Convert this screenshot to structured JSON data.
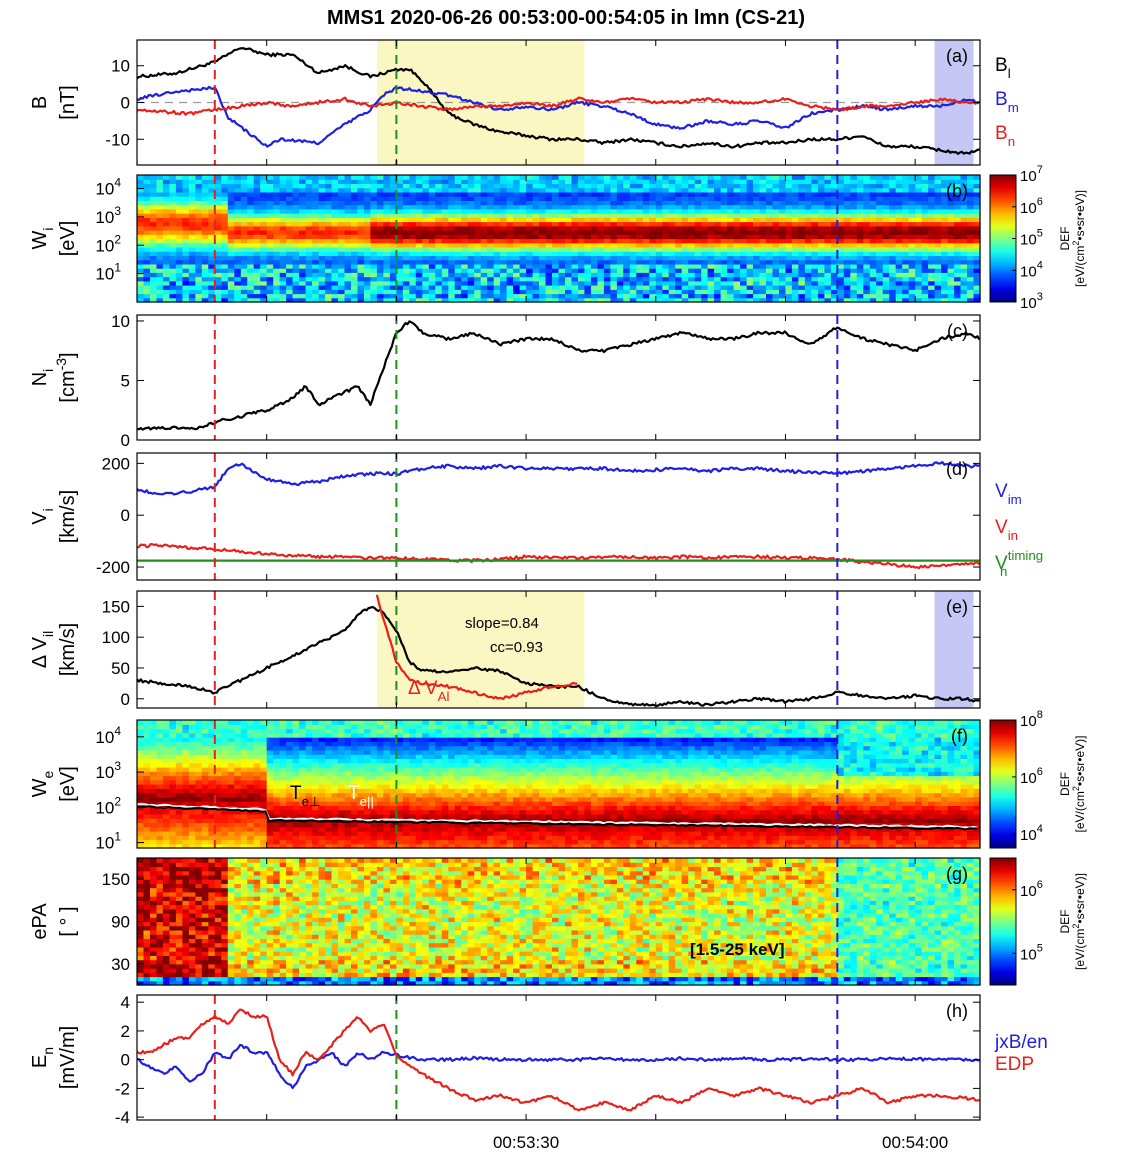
{
  "figure": {
    "title": "MMS1 2020-06-26 00:53:00-00:54:05 in lmn (CS-21)",
    "x_tick_labels": [
      "00:53:30",
      "00:54:00"
    ],
    "colors": {
      "black": "#000000",
      "blue": "#1f1fe0",
      "red": "#e8201c",
      "green": "#1f8f1f",
      "yellow_band": "#fbf7c2",
      "purple_band": "#c6c7f4"
    }
  },
  "chart_data": [
    {
      "panel": "a",
      "type": "line",
      "label": "(a)",
      "ylabel": "B",
      "yunit": "[nT]",
      "ylim": [
        -17,
        17
      ],
      "yticks": [
        -10,
        0,
        10
      ],
      "ytick_labels": [
        "-10",
        "0",
        "10"
      ],
      "series": [
        {
          "name": "B",
          "sub": "l",
          "color": "#000000",
          "t": [
            0,
            3,
            6,
            8,
            10,
            12,
            14,
            16,
            18,
            20,
            21,
            22,
            24,
            26,
            28,
            30,
            32,
            34,
            36,
            38,
            40,
            42,
            44,
            46,
            48,
            50,
            52,
            54,
            56,
            57,
            58,
            60,
            62,
            64,
            65
          ],
          "y": [
            7,
            8,
            11,
            15,
            13,
            13,
            8,
            10,
            7,
            9,
            9,
            6,
            -3,
            -6,
            -8,
            -9,
            -10,
            -10,
            -11,
            -10,
            -11,
            -12,
            -11,
            -12,
            -11,
            -11,
            -10,
            -10,
            -9,
            -11,
            -12,
            -12,
            -13,
            -14,
            -13
          ]
        },
        {
          "name": "B",
          "sub": "m",
          "color": "#1f1fe0",
          "t": [
            0,
            3,
            6,
            7,
            10,
            11,
            14,
            16,
            18,
            19,
            20,
            22,
            24,
            26,
            28,
            30,
            32,
            34,
            36,
            38,
            40,
            42,
            44,
            46,
            48,
            50,
            52,
            54,
            56,
            58,
            60,
            62,
            64,
            65
          ],
          "y": [
            1,
            3,
            4,
            -4,
            -12,
            -10,
            -11,
            -6,
            -2,
            2,
            4,
            3,
            2,
            0,
            -2,
            -1,
            -2,
            0,
            -1,
            -3,
            -6,
            -7,
            -5,
            -6,
            -5,
            -7,
            -3,
            -2,
            -1,
            -2,
            -1,
            -1,
            1,
            0
          ]
        },
        {
          "name": "B",
          "sub": "n",
          "color": "#e8201c",
          "t": [
            0,
            4,
            6,
            8,
            10,
            12,
            14,
            16,
            18,
            20,
            22,
            24,
            26,
            28,
            30,
            32,
            34,
            36,
            38,
            40,
            42,
            44,
            46,
            48,
            50,
            52,
            54,
            56,
            58,
            60,
            62,
            64,
            65
          ],
          "y": [
            -2,
            -3,
            -2,
            -1,
            0,
            -1,
            0,
            1,
            -1,
            0,
            -1,
            -2,
            -1,
            -1,
            0,
            -1,
            1,
            0,
            1,
            0,
            0,
            1,
            0,
            0,
            1,
            -1,
            -2,
            -1,
            -1,
            0,
            1,
            0,
            0
          ]
        }
      ],
      "vlines_t": [
        6,
        20,
        54
      ],
      "hline_y": 0,
      "shaded_t": [
        [
          18.5,
          34.5
        ],
        [
          61.5,
          64.5
        ]
      ],
      "legend": [
        {
          "name": "B",
          "sub": "l",
          "color": "#000000"
        },
        {
          "name": "B",
          "sub": "m",
          "color": "#1f1fe0"
        },
        {
          "name": "B",
          "sub": "n",
          "color": "#e8201c"
        }
      ]
    },
    {
      "panel": "b",
      "type": "heatmap",
      "label": "(b)",
      "ylabel": "W",
      "ysub": "i",
      "yunit": "[eV]",
      "yscale": "log",
      "ylim": [
        1,
        30000
      ],
      "ytick_labels": [
        [
          "10",
          "1"
        ],
        [
          "10",
          "2"
        ],
        [
          "10",
          "3"
        ],
        [
          "10",
          "4"
        ]
      ],
      "colorbar": {
        "min_exp": 3,
        "max_exp": 7,
        "tick_labels": [
          [
            "10",
            "3"
          ],
          [
            "10",
            "4"
          ],
          [
            "10",
            "5"
          ],
          [
            "10",
            "6"
          ],
          [
            "10",
            "7"
          ]
        ],
        "label": "DEF",
        "unit_prefix": "[eV/(cm",
        "unit_sup": "2",
        "unit_suffix": "•s•sr•eV)]"
      },
      "vlines_t": [
        6,
        20,
        54
      ]
    },
    {
      "panel": "c",
      "type": "line",
      "label": "(c)",
      "ylabel": "N",
      "ysub": "i",
      "yunit_prefix": "[cm",
      "yunit_sup": "-3",
      "yunit_suffix": "]",
      "ylim": [
        0,
        10.5
      ],
      "yticks": [
        0,
        5,
        10
      ],
      "ytick_labels": [
        "0",
        "5",
        "10"
      ],
      "series": [
        {
          "name": "N_i",
          "color": "#000000",
          "t": [
            0,
            3,
            5,
            6,
            8,
            10,
            12,
            13,
            14,
            15,
            16,
            17,
            18,
            19,
            20,
            21,
            22,
            24,
            26,
            28,
            30,
            32,
            34,
            36,
            38,
            40,
            42,
            44,
            46,
            48,
            50,
            52,
            54,
            56,
            58,
            60,
            62,
            64,
            65
          ],
          "y": [
            1,
            1,
            1,
            1.5,
            2,
            2.5,
            3.5,
            4.5,
            3,
            3.5,
            4,
            4.5,
            3,
            6,
            9,
            10,
            9,
            8.5,
            9,
            8,
            8.5,
            8.5,
            7.5,
            7.5,
            8,
            8.5,
            9,
            8.5,
            8.5,
            9,
            9,
            8,
            9.5,
            8.5,
            8,
            7.5,
            8.5,
            9,
            8.5
          ]
        }
      ],
      "vlines_t": [
        6,
        20,
        54
      ]
    },
    {
      "panel": "d",
      "type": "line",
      "label": "(d)",
      "ylabel": "V",
      "ysub": "i",
      "yunit": "[km/s]",
      "ylim": [
        -250,
        240
      ],
      "yticks": [
        -200,
        0,
        200
      ],
      "ytick_labels": [
        "-200",
        "0",
        "200"
      ],
      "series": [
        {
          "name": "V",
          "sub": "im",
          "sup": "",
          "color": "#1f1fe0",
          "t": [
            0,
            2,
            4,
            6,
            7,
            8,
            10,
            12,
            14,
            16,
            18,
            20,
            22,
            24,
            26,
            28,
            30,
            32,
            34,
            36,
            38,
            40,
            42,
            44,
            46,
            48,
            50,
            52,
            54,
            56,
            58,
            60,
            62,
            64,
            65
          ],
          "y": [
            100,
            80,
            90,
            110,
            180,
            200,
            140,
            120,
            130,
            150,
            160,
            160,
            180,
            190,
            180,
            190,
            180,
            180,
            180,
            180,
            170,
            175,
            180,
            170,
            180,
            180,
            170,
            165,
            160,
            170,
            180,
            190,
            200,
            190,
            190
          ]
        },
        {
          "name": "V",
          "sub": "in",
          "sup": "",
          "color": "#e8201c",
          "t": [
            0,
            2,
            4,
            6,
            8,
            10,
            12,
            14,
            16,
            18,
            20,
            22,
            24,
            26,
            28,
            30,
            32,
            34,
            36,
            38,
            40,
            42,
            44,
            46,
            48,
            50,
            52,
            54,
            56,
            58,
            60,
            62,
            64,
            65
          ],
          "y": [
            -120,
            -115,
            -125,
            -130,
            -140,
            -150,
            -155,
            -160,
            -160,
            -165,
            -165,
            -170,
            -175,
            -175,
            -170,
            -160,
            -165,
            -165,
            -160,
            -160,
            -165,
            -160,
            -165,
            -160,
            -160,
            -165,
            -165,
            -170,
            -180,
            -190,
            -200,
            -195,
            -190,
            -185
          ]
        },
        {
          "name": "V",
          "sub": "n",
          "sup": "timing",
          "color": "#1f8f1f",
          "t": [
            0,
            65
          ],
          "y": [
            -175,
            -175
          ]
        }
      ],
      "vlines_t": [
        6,
        20,
        54
      ],
      "legend": [
        {
          "name": "V",
          "sub": "im",
          "sup": "",
          "color": "#1f1fe0"
        },
        {
          "name": "V",
          "sub": "in",
          "sup": "",
          "color": "#e8201c"
        },
        {
          "name": "V",
          "sub": "n",
          "sup": "timing",
          "color": "#1f8f1f"
        }
      ]
    },
    {
      "panel": "e",
      "type": "line",
      "label": "(e)",
      "ylabel": "Δ V",
      "ysub": "il",
      "yunit": "[km/s]",
      "ylim": [
        -15,
        175
      ],
      "yticks": [
        0,
        50,
        100,
        150
      ],
      "ytick_labels": [
        "0",
        "50",
        "100",
        "150"
      ],
      "series": [
        {
          "name": "ΔV_il",
          "color": "#000000",
          "t": [
            0,
            2,
            4,
            6,
            8,
            10,
            12,
            14,
            16,
            17,
            18,
            19,
            20,
            21,
            22,
            24,
            26,
            28,
            30,
            32,
            34,
            36,
            38,
            40,
            42,
            44,
            46,
            48,
            50,
            52,
            54,
            56,
            58,
            60,
            62,
            64,
            65
          ],
          "y": [
            30,
            25,
            20,
            10,
            30,
            50,
            70,
            90,
            110,
            135,
            150,
            140,
            110,
            60,
            45,
            45,
            50,
            45,
            25,
            20,
            20,
            0,
            -10,
            -10,
            -5,
            -10,
            -5,
            0,
            -5,
            0,
            10,
            5,
            0,
            5,
            0,
            0,
            -5
          ]
        },
        {
          "name": "Δ V_Al",
          "color": "#e8201c",
          "t": [
            18.5,
            19,
            20,
            21,
            22,
            24,
            26,
            28,
            30,
            32,
            34
          ],
          "y": [
            170,
            130,
            60,
            30,
            25,
            20,
            10,
            0,
            10,
            20,
            25
          ]
        }
      ],
      "annotations": {
        "slope": "slope=0.84",
        "cc": "cc=0.93",
        "label": "Δ V",
        "label_sub": "Al"
      },
      "vlines_t": [
        6,
        20,
        54
      ],
      "shaded_t": [
        [
          18.5,
          34.5
        ],
        [
          61.5,
          64.5
        ]
      ]
    },
    {
      "panel": "f",
      "type": "heatmap",
      "label": "(f)",
      "ylabel": "W",
      "ysub": "e",
      "yunit": "[eV]",
      "yscale": "log",
      "ylim": [
        7,
        30000
      ],
      "ytick_labels": [
        [
          "10",
          "1"
        ],
        [
          "10",
          "2"
        ],
        [
          "10",
          "3"
        ],
        [
          "10",
          "4"
        ]
      ],
      "temperature_labels": [
        {
          "name": "T",
          "sub": "e⊥",
          "color": "#000000"
        },
        {
          "name": "T",
          "sub": "e||",
          "color": "#ffffff"
        }
      ],
      "colorbar": {
        "min_exp": 3.5,
        "max_exp": 8,
        "tick_labels": [
          [
            "10",
            "4"
          ],
          [
            "10",
            "6"
          ],
          [
            "10",
            "8"
          ]
        ],
        "label": "DEF",
        "unit_prefix": "[eV/(cm",
        "unit_sup": "2",
        "unit_suffix": "•s•sr•eV)]"
      },
      "vlines_t": [
        6,
        20,
        54
      ]
    },
    {
      "panel": "g",
      "type": "heatmap",
      "label": "(g)",
      "ylabel": "ePA",
      "yunit": "[ ° ]",
      "ylim": [
        0,
        180
      ],
      "yticks": [
        30,
        90,
        150
      ],
      "ytick_labels": [
        "30",
        "90",
        "150"
      ],
      "energy_range": "[1.5-25 keV]",
      "colorbar": {
        "min_exp": 4.5,
        "max_exp": 6.5,
        "tick_labels": [
          [
            "10",
            "5"
          ],
          [
            "10",
            "6"
          ]
        ],
        "label": "DEF",
        "unit_prefix": "[eV/(cm",
        "unit_sup": "2",
        "unit_suffix": "•s•sr•eV)]"
      },
      "vlines_t": [
        54
      ]
    },
    {
      "panel": "h",
      "type": "line",
      "label": "(h)",
      "ylabel": "E",
      "ysub": "n",
      "yunit": "[mV/m]",
      "ylim": [
        -4.2,
        4.5
      ],
      "yticks": [
        -4,
        -2,
        0,
        2,
        4
      ],
      "ytick_labels": [
        "-4",
        "-2",
        "0",
        "2",
        "4"
      ],
      "series": [
        {
          "name": "jxB/en",
          "color": "#1f1fe0",
          "t": [
            0,
            1,
            2,
            3,
            4,
            5,
            6,
            7,
            8,
            9,
            10,
            11,
            12,
            13,
            14,
            15,
            16,
            17,
            18,
            19,
            20,
            22,
            24,
            26,
            28,
            30,
            32,
            34,
            36,
            38,
            40,
            42,
            44,
            46,
            48,
            50,
            52,
            54,
            56,
            58,
            60,
            62,
            64,
            65
          ],
          "y": [
            0,
            -0.5,
            -1,
            -0.5,
            -1.5,
            -1,
            0.5,
            0,
            1,
            0.5,
            0.5,
            -1,
            -2,
            -0.5,
            0,
            0.5,
            -0.5,
            0.5,
            0,
            0.5,
            0.3,
            0,
            0,
            0.1,
            0,
            0,
            0,
            0,
            0.1,
            0,
            0,
            0.1,
            0,
            0.1,
            0,
            0,
            0.1,
            0,
            0,
            0.1,
            0,
            0.1,
            0,
            0
          ]
        },
        {
          "name": "EDP",
          "color": "#e8201c",
          "t": [
            0,
            1,
            2,
            3,
            4,
            5,
            6,
            7,
            8,
            9,
            10,
            11,
            12,
            13,
            14,
            15,
            16,
            17,
            18,
            19,
            20,
            22,
            24,
            26,
            28,
            30,
            32,
            34,
            36,
            38,
            40,
            42,
            44,
            46,
            48,
            50,
            52,
            54,
            56,
            58,
            60,
            62,
            64,
            65
          ],
          "y": [
            0.5,
            0.5,
            1,
            1.5,
            1.5,
            2.5,
            3,
            2.5,
            3.5,
            3,
            3,
            0,
            -1,
            0.5,
            0,
            1,
            2,
            3,
            2,
            2.5,
            0.3,
            -1,
            -2,
            -2.8,
            -2.5,
            -3,
            -2.5,
            -3.5,
            -3,
            -3.5,
            -2.5,
            -3,
            -2,
            -2.5,
            -2,
            -2.5,
            -3,
            -2.5,
            -2,
            -3,
            -2.5,
            -2.5,
            -2.7,
            -2.8
          ]
        }
      ],
      "vlines_t": [
        6,
        20,
        54
      ],
      "legend": [
        {
          "name": "jxB/en",
          "color": "#1f1fe0"
        },
        {
          "name": "EDP",
          "color": "#e8201c"
        }
      ]
    }
  ]
}
